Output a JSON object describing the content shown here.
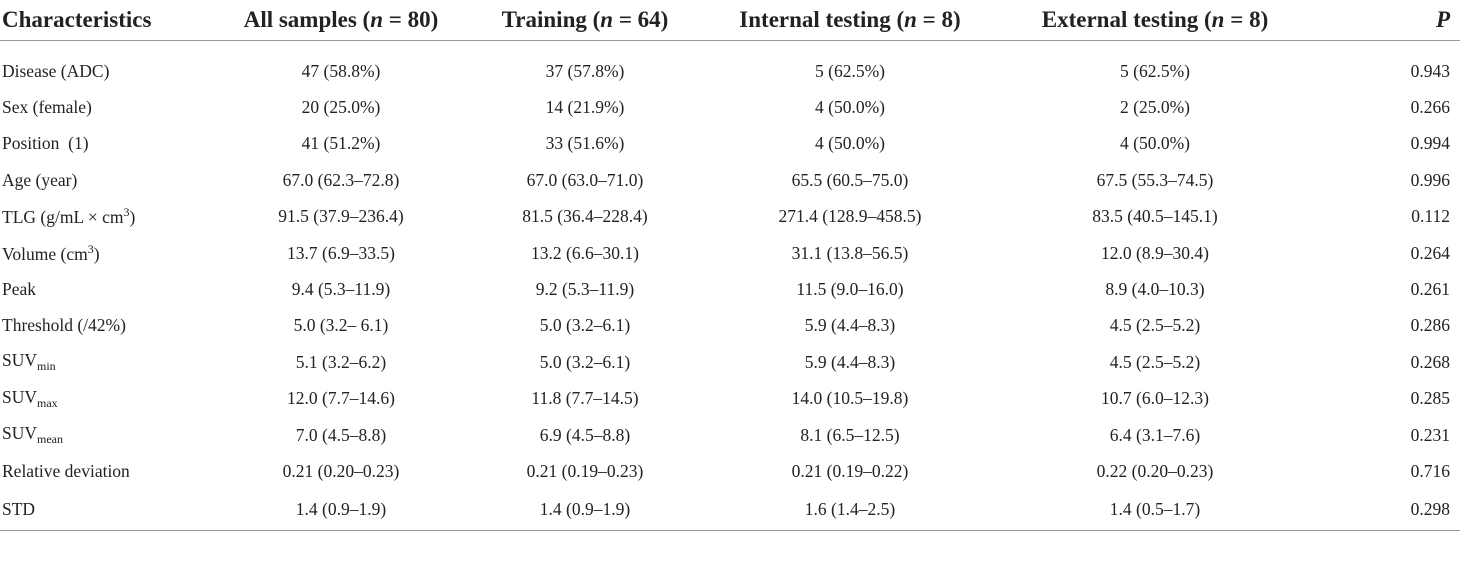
{
  "header": {
    "characteristics": "Characteristics",
    "all": {
      "label": "All samples (",
      "n": "n",
      "rest": " = 80)"
    },
    "training": {
      "label": "Training (",
      "n": "n",
      "rest": " = 64)"
    },
    "internal": {
      "label": "Internal testing (",
      "n": "n",
      "rest": " = 8)"
    },
    "external": {
      "label": "External testing (",
      "n": "n",
      "rest": " = 8)"
    },
    "p": "P"
  },
  "rows": [
    {
      "name": "Disease (ADC)",
      "all": "47 (58.8%)",
      "training": "37 (57.8%)",
      "internal": "5 (62.5%)",
      "external": "5 (62.5%)",
      "p": "0.943"
    },
    {
      "name": "Sex (female)",
      "all": "20 (25.0%)",
      "training": "14 (21.9%)",
      "internal": "4 (50.0%)",
      "external": "2 (25.0%)",
      "p": "0.266"
    },
    {
      "name": "Position (1)",
      "all": "41 (51.2%)",
      "training": "33 (51.6%)",
      "internal": "4 (50.0%)",
      "external": "4 (50.0%)",
      "p": "0.994"
    },
    {
      "name": "Age (year)",
      "all": "67.0 (62.3–72.8)",
      "training": "67.0 (63.0–71.0)",
      "internal": "65.5 (60.5–75.0)",
      "external": "67.5 (55.3–74.5)",
      "p": "0.996"
    },
    {
      "name_base": "TLG (g/mL × cm",
      "name_sup": "3",
      "name_tail": ")",
      "all": "91.5 (37.9–236.4)",
      "training": "81.5 (36.4–228.4)",
      "internal": "271.4 (128.9–458.5)",
      "external": "83.5 (40.5–145.1)",
      "p": "0.112"
    },
    {
      "name_base": "Volume (cm",
      "name_sup": "3",
      "name_tail": ")",
      "all": "13.7 (6.9–33.5)",
      "training": "13.2 (6.6–30.1)",
      "internal": "31.1 (13.8–56.5)",
      "external": "12.0 (8.9–30.4)",
      "p": "0.264"
    },
    {
      "name": "Peak",
      "all": "9.4 (5.3–11.9)",
      "training": "9.2 (5.3–11.9)",
      "internal": "11.5 (9.0–16.0)",
      "external": "8.9 (4.0–10.3)",
      "p": "0.261"
    },
    {
      "name": "Threshold (/42%)",
      "all": "5.0 (3.2– 6.1)",
      "training": "5.0 (3.2–6.1)",
      "internal": "5.9 (4.4–8.3)",
      "external": "4.5 (2.5–5.2)",
      "p": "0.286"
    },
    {
      "name_base": "SUV",
      "name_sub": "min",
      "all": "5.1 (3.2–6.2)",
      "training": "5.0 (3.2–6.1)",
      "internal": "5.9 (4.4–8.3)",
      "external": "4.5 (2.5–5.2)",
      "p": "0.268"
    },
    {
      "name_base": "SUV",
      "name_sub": "max",
      "all": "12.0 (7.7–14.6)",
      "training": "11.8 (7.7–14.5)",
      "internal": "14.0 (10.5–19.8)",
      "external": "10.7 (6.0–12.3)",
      "p": "0.285"
    },
    {
      "name_base": "SUV",
      "name_sub": "mean",
      "all": "7.0 (4.5–8.8)",
      "training": "6.9 (4.5–8.8)",
      "internal": "8.1 (6.5–12.5)",
      "external": "6.4 (3.1–7.6)",
      "p": "0.231"
    },
    {
      "name": "Relative deviation",
      "all": "0.21 (0.20–0.23)",
      "training": "0.21 (0.19–0.23)",
      "internal": "0.21 (0.19–0.22)",
      "external": "0.22 (0.20–0.23)",
      "p": "0.716"
    },
    {
      "name": "STD",
      "all": "1.4 (0.9–1.9)",
      "training": "1.4 (0.9–1.9)",
      "internal": "1.6 (1.4–2.5)",
      "external": "1.4 (0.5–1.7)",
      "p": "0.298"
    }
  ]
}
